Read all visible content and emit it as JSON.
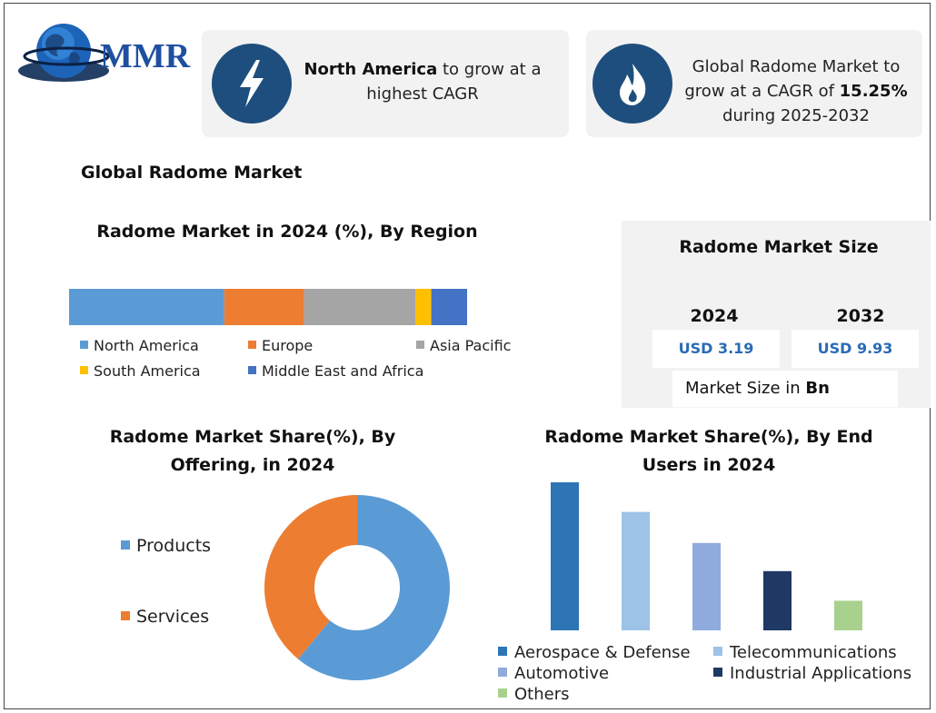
{
  "logo": {
    "text": "MMR"
  },
  "highlights": [
    {
      "icon": "lightning-icon",
      "bold": "North America",
      "text": " to grow at a highest CAGR"
    },
    {
      "icon": "flame-icon",
      "text": "Global Radome Market to grow at a CAGR of ",
      "bold": "15.25%",
      "text_after": " during 2025-2032"
    }
  ],
  "section_title": "Global Radome Market",
  "market_size": {
    "title": "Radome Market Size",
    "years": [
      "2024",
      "2032"
    ],
    "values": [
      "USD 3.19",
      "USD 9.93"
    ],
    "unit_label": "Market Size in ",
    "unit_bold": "Bn"
  },
  "chart_data": [
    {
      "type": "bar",
      "stacked": true,
      "orientation": "horizontal",
      "title": "Radome Market in 2024 (%), By Region",
      "series": [
        {
          "name": "North America",
          "value": 39,
          "color": "#5b9bd5"
        },
        {
          "name": "Europe",
          "value": 20,
          "color": "#ed7d31"
        },
        {
          "name": "Asia Pacific",
          "value": 28,
          "color": "#a5a5a5"
        },
        {
          "name": "South America",
          "value": 4,
          "color": "#ffc000"
        },
        {
          "name": "Middle East and Africa",
          "value": 9,
          "color": "#4472c4"
        }
      ]
    },
    {
      "type": "pie",
      "donut": true,
      "title": "Radome Market Share(%), By Offering, in 2024",
      "categories": [
        "Products",
        "Services"
      ],
      "values": [
        61,
        39
      ],
      "colors": [
        "#5b9bd5",
        "#ed7d31"
      ]
    },
    {
      "type": "bar",
      "title": "Radome Market Share(%), By End Users in 2024",
      "categories": [
        "Aerospace & Defense",
        "Telecommunications",
        "Automotive",
        "Industrial Applications",
        "Others"
      ],
      "values": [
        100,
        80,
        59,
        40,
        20
      ],
      "colors": [
        "#2e75b6",
        "#9dc3e6",
        "#8faadc",
        "#1f3864",
        "#a9d18e"
      ]
    }
  ]
}
